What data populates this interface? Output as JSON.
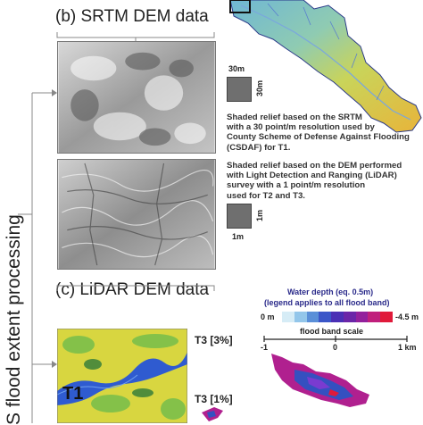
{
  "headings": {
    "srtm": "(b) SRTM DEM data",
    "lidar": "(c) LiDAR DEM data"
  },
  "side_label": "S flood extent processing",
  "srtm_panel": {
    "scale_top": "30m",
    "scale_side": "30m",
    "note_lines": [
      "Shaded relief based on the SRTM",
      "with a 30 point/m resolution used by",
      "County Scheme of Defense Against Flooding",
      "(CSDAF) for T1."
    ]
  },
  "lidar_panel": {
    "scale_side": "1m",
    "scale_bottom": "1m",
    "note_lines": [
      "Shaded relief based on the DEM performed",
      "with Light Detection and Ranging (LiDAR)",
      "survey with a 1 point/m resolution",
      "used for T2 and T3."
    ]
  },
  "legend": {
    "title_line1": "Water depth (eq. 0.5m)",
    "title_line2": "(legend applies to all flood band)",
    "min_label": "0 m",
    "max_label": "-4.5 m",
    "colors": [
      "#d6ecf6",
      "#93c6ea",
      "#5a8fd8",
      "#3b56c8",
      "#4a2fb5",
      "#6b25a8",
      "#93209c",
      "#c01f7c",
      "#e01a3a"
    ],
    "scale_title": "flood band scale",
    "scale_ticks": [
      "-1",
      "0",
      "1 km"
    ]
  },
  "map_labels": {
    "t1": "T1",
    "t3_3": "T3 [3%]",
    "t3_1": "T3 [1%]"
  },
  "colors": {
    "river_map": "#e8c43a",
    "flood_magenta": "#b0208f",
    "flood_blue": "#3550c0"
  }
}
